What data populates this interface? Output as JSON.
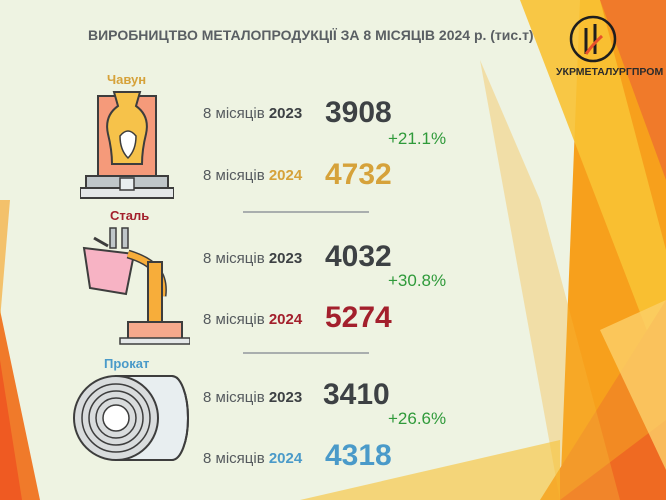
{
  "title": "ВИРОБНИЦТВО МЕТАЛОПРОДУКЦІЇ ЗА 8 МІСЯЦІВ 2024 р. (тис.т)",
  "brand": "УКРМЕТАЛУРГПРОМ",
  "colors": {
    "background": "#eef3e2",
    "chavun": "#d6a23a",
    "stal": "#a31f2c",
    "prokat": "#4a9ac9",
    "growth": "#2f9a3a",
    "dark_value": "#3d4144",
    "orange": "#f07a2a",
    "yellow": "#f8c234"
  },
  "sections": [
    {
      "label": "Чавун",
      "icon": "furnace-icon",
      "prev_label": "8 місяців ",
      "prev_year": "2023",
      "prev_value": "3908",
      "curr_label": "8 місяців ",
      "curr_year": "2024",
      "curr_value": "4732",
      "growth": "+21.1%"
    },
    {
      "label": "Сталь",
      "icon": "ladle-icon",
      "prev_label": "8 місяців ",
      "prev_year": "2023",
      "prev_value": "4032",
      "curr_label": "8 місяців ",
      "curr_year": "2024",
      "curr_value": "5274",
      "growth": "+30.8%"
    },
    {
      "label": "Прокат",
      "icon": "steel-coil-icon",
      "prev_label": "8 місяців ",
      "prev_year": "2023",
      "prev_value": "3410",
      "curr_label": "8 місяців ",
      "curr_year": "2024",
      "curr_value": "4318",
      "growth": "+26.6%"
    }
  ]
}
